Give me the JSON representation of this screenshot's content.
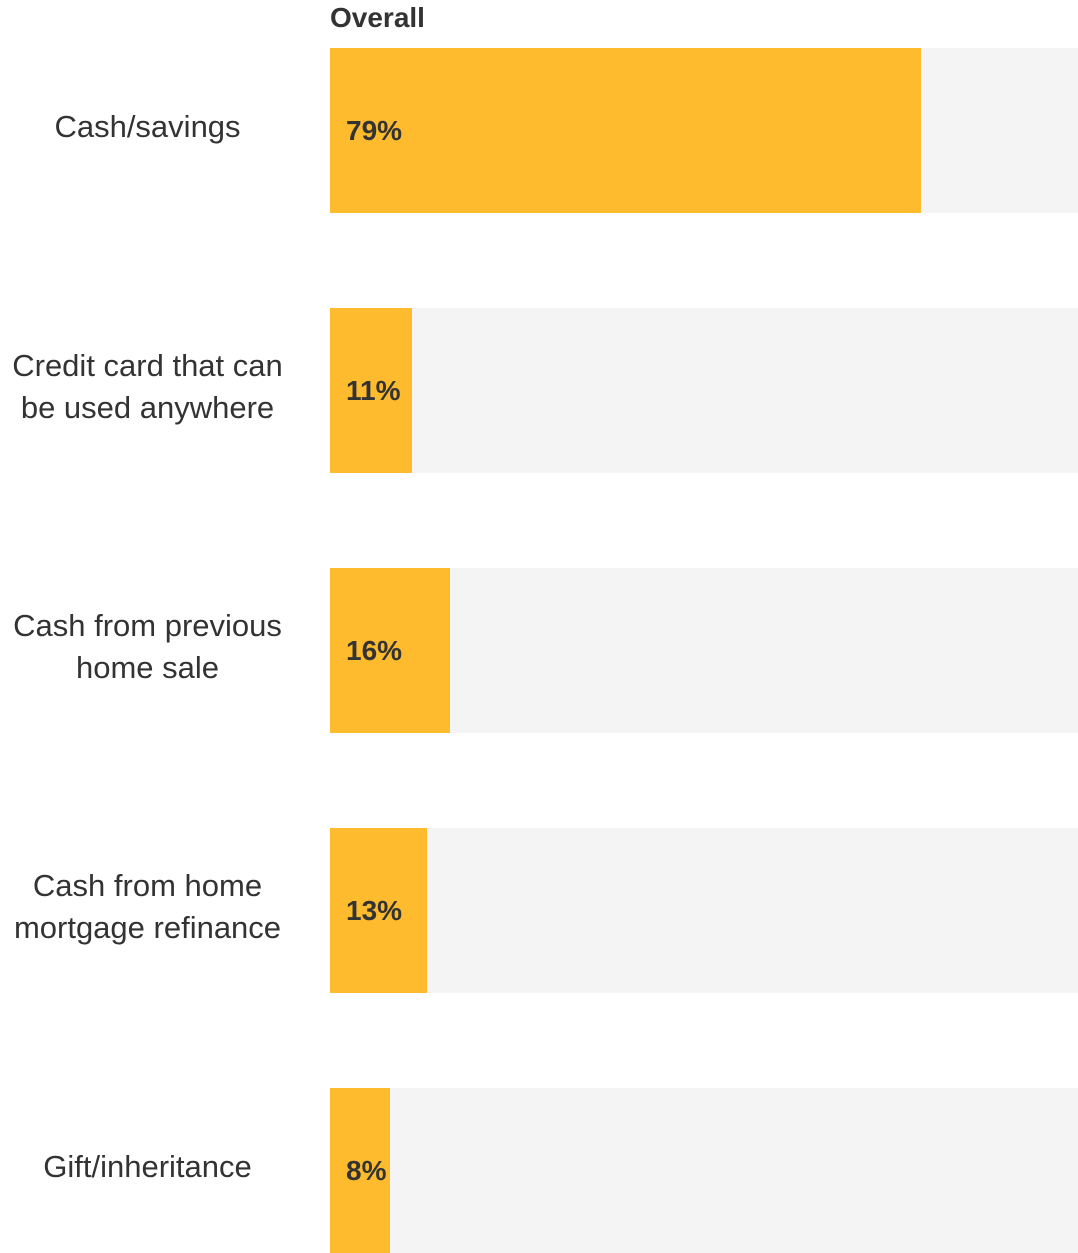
{
  "chart_data": {
    "type": "bar",
    "orientation": "horizontal",
    "title": "Overall",
    "categories": [
      "Cash/savings",
      "Credit card that can be used anywhere",
      "Cash from previous home sale",
      "Cash from home mortgage refinance",
      "Gift/inheritance"
    ],
    "values": [
      79,
      11,
      16,
      13,
      8
    ],
    "value_labels": [
      "79%",
      "11%",
      "16%",
      "13%",
      "8%"
    ],
    "color": "#fdbb2d",
    "track_color": "#f4f4f4",
    "xlim": [
      0,
      100
    ]
  }
}
